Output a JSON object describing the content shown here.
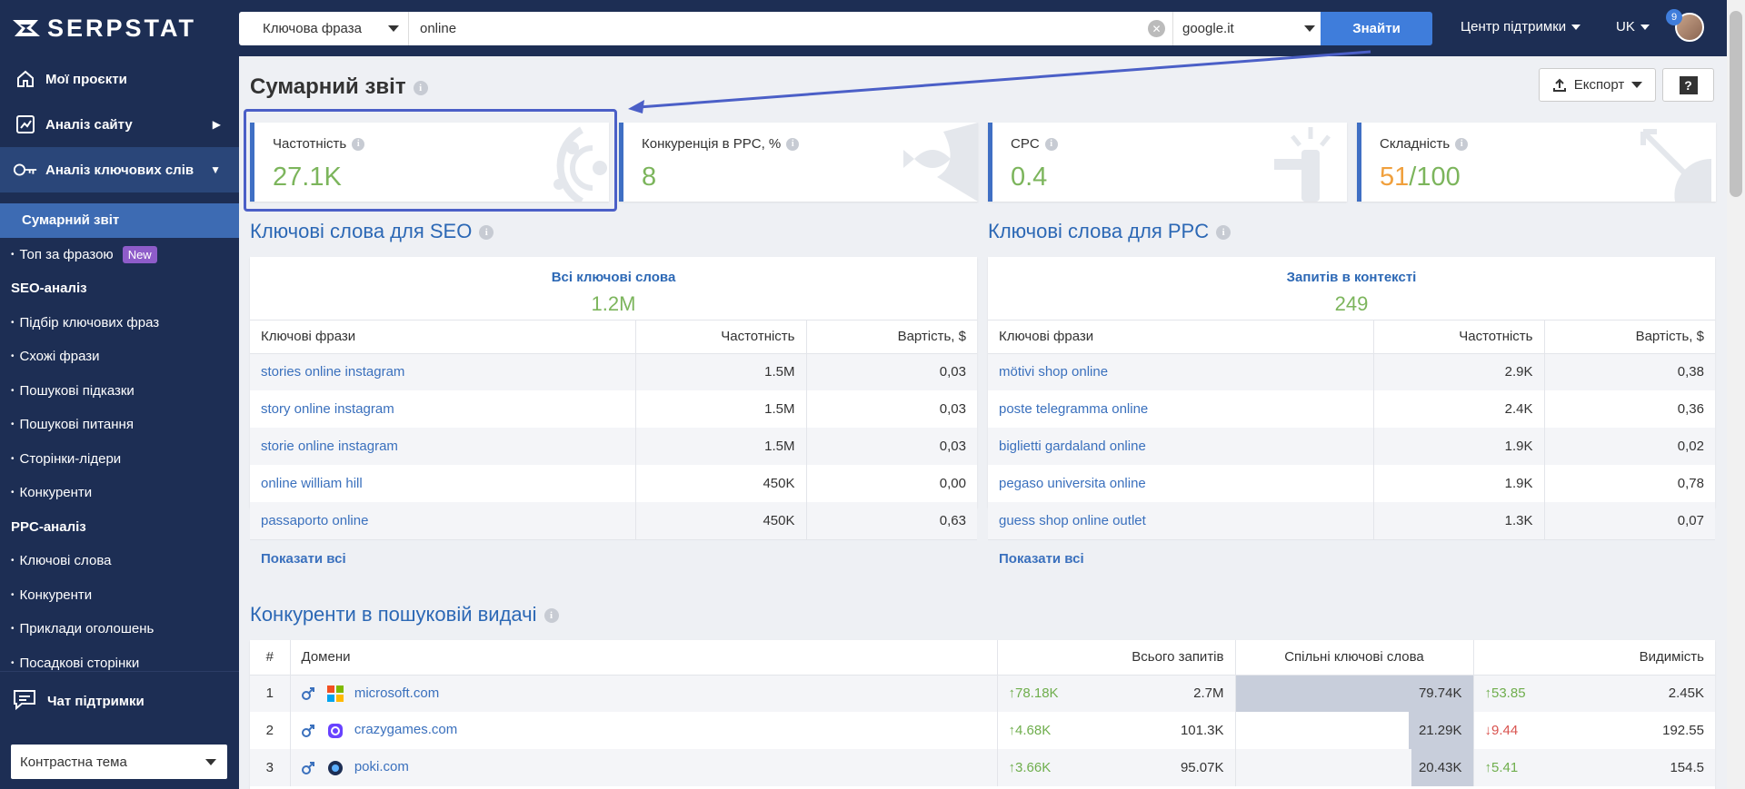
{
  "brand": "SERPSTAT",
  "sidebar": {
    "main_items": [
      {
        "label": "Мої проєкти",
        "icon": "home-icon"
      },
      {
        "label": "Аналіз сайту",
        "icon": "chart-icon"
      },
      {
        "label": "Аналіз ключових слів",
        "icon": "key-icon"
      }
    ],
    "active_item": "Сумарний звіт",
    "top_by_phrase": "Топ за фразою",
    "new_badge": "New",
    "seo_head": "SEO-аналіз",
    "seo_items": [
      "Підбір ключових фраз",
      "Схожі фрази",
      "Пошукові підказки",
      "Пошукові питання",
      "Сторінки-лідери",
      "Конкуренти"
    ],
    "ppc_head": "PPC-аналіз",
    "ppc_items": [
      "Ключові слова",
      "Конкуренти",
      "Приклади оголошень",
      "Посадкові сторінки"
    ],
    "chat": "Чат підтримки",
    "theme": "Контрастна тема"
  },
  "topbar": {
    "search_type": "Ключова фраза",
    "query": "online",
    "search_engine": "google.it",
    "find_label": "Знайти",
    "support": "Центр підтримки",
    "lang": "UK",
    "notifications": "9"
  },
  "page": {
    "title": "Сумарний звіт",
    "export": "Експорт",
    "help": "?"
  },
  "metrics": [
    {
      "label": "Частотність",
      "value": "27.1K"
    },
    {
      "label": "Конкуренція в PPC, %",
      "value": "8"
    },
    {
      "label": "CPC",
      "value": "0.4"
    },
    {
      "label": "Складність",
      "value_main": "51",
      "value_rest": "/100"
    }
  ],
  "seo": {
    "title": "Ключові слова для SEO",
    "summary_label": "Всі ключові слова",
    "summary_value": "1.2M",
    "columns": [
      "Ключові фрази",
      "Частотність",
      "Вартість, $"
    ],
    "rows": [
      [
        "stories online instagram",
        "1.5M",
        "0,03"
      ],
      [
        "story online instagram",
        "1.5M",
        "0,03"
      ],
      [
        "storie online instagram",
        "1.5M",
        "0,03"
      ],
      [
        "online william hill",
        "450K",
        "0,00"
      ],
      [
        "passaporto online",
        "450K",
        "0,63"
      ]
    ],
    "show_all": "Показати всі"
  },
  "ppc": {
    "title": "Ключові слова для PPC",
    "summary_label": "Запитів в контексті",
    "summary_value": "249",
    "columns": [
      "Ключові фрази",
      "Частотність",
      "Вартість, $"
    ],
    "rows": [
      [
        "mötivi shop online",
        "2.9K",
        "0,38"
      ],
      [
        "poste telegramma online",
        "2.4K",
        "0,36"
      ],
      [
        "biglietti gardaland online",
        "1.9K",
        "0,02"
      ],
      [
        "pegaso universita online",
        "1.9K",
        "0,78"
      ],
      [
        "guess shop online outlet",
        "1.3K",
        "0,07"
      ]
    ],
    "show_all": "Показати всі"
  },
  "competitors": {
    "title": "Конкуренти в пошуковій видачі",
    "columns": [
      "#",
      "Домени",
      "Всього запитів",
      "Спільні ключові слова",
      "Видимість"
    ],
    "rows": [
      {
        "idx": "1",
        "domain": "microsoft.com",
        "favicon": "microsoft-logo-icon",
        "total_delta": "78.18K",
        "total_dir": "up",
        "total": "2.7M",
        "common": "79.74K",
        "common_share": 1.0,
        "vis_delta": "53.85",
        "vis_dir": "up",
        "visibility": "2.45K"
      },
      {
        "idx": "2",
        "domain": "crazygames.com",
        "favicon": "crazygames-logo-icon",
        "total_delta": "4.68K",
        "total_dir": "up",
        "total": "101.3K",
        "common": "21.29K",
        "common_share": 0.27,
        "vis_delta": "9.44",
        "vis_dir": "down",
        "visibility": "192.55"
      },
      {
        "idx": "3",
        "domain": "poki.com",
        "favicon": "poki-logo-icon",
        "total_delta": "3.66K",
        "total_dir": "up",
        "total": "95.07K",
        "common": "20.43K",
        "common_share": 0.26,
        "vis_delta": "5.41",
        "vis_dir": "up",
        "visibility": "154.5"
      }
    ]
  },
  "colors": {
    "sidebar_bg": "#1d2e54",
    "accent_blue": "#3f7ddb",
    "value_green": "#7cb55c",
    "value_orange": "#f0a03d",
    "highlight": "#4b5fc7"
  }
}
